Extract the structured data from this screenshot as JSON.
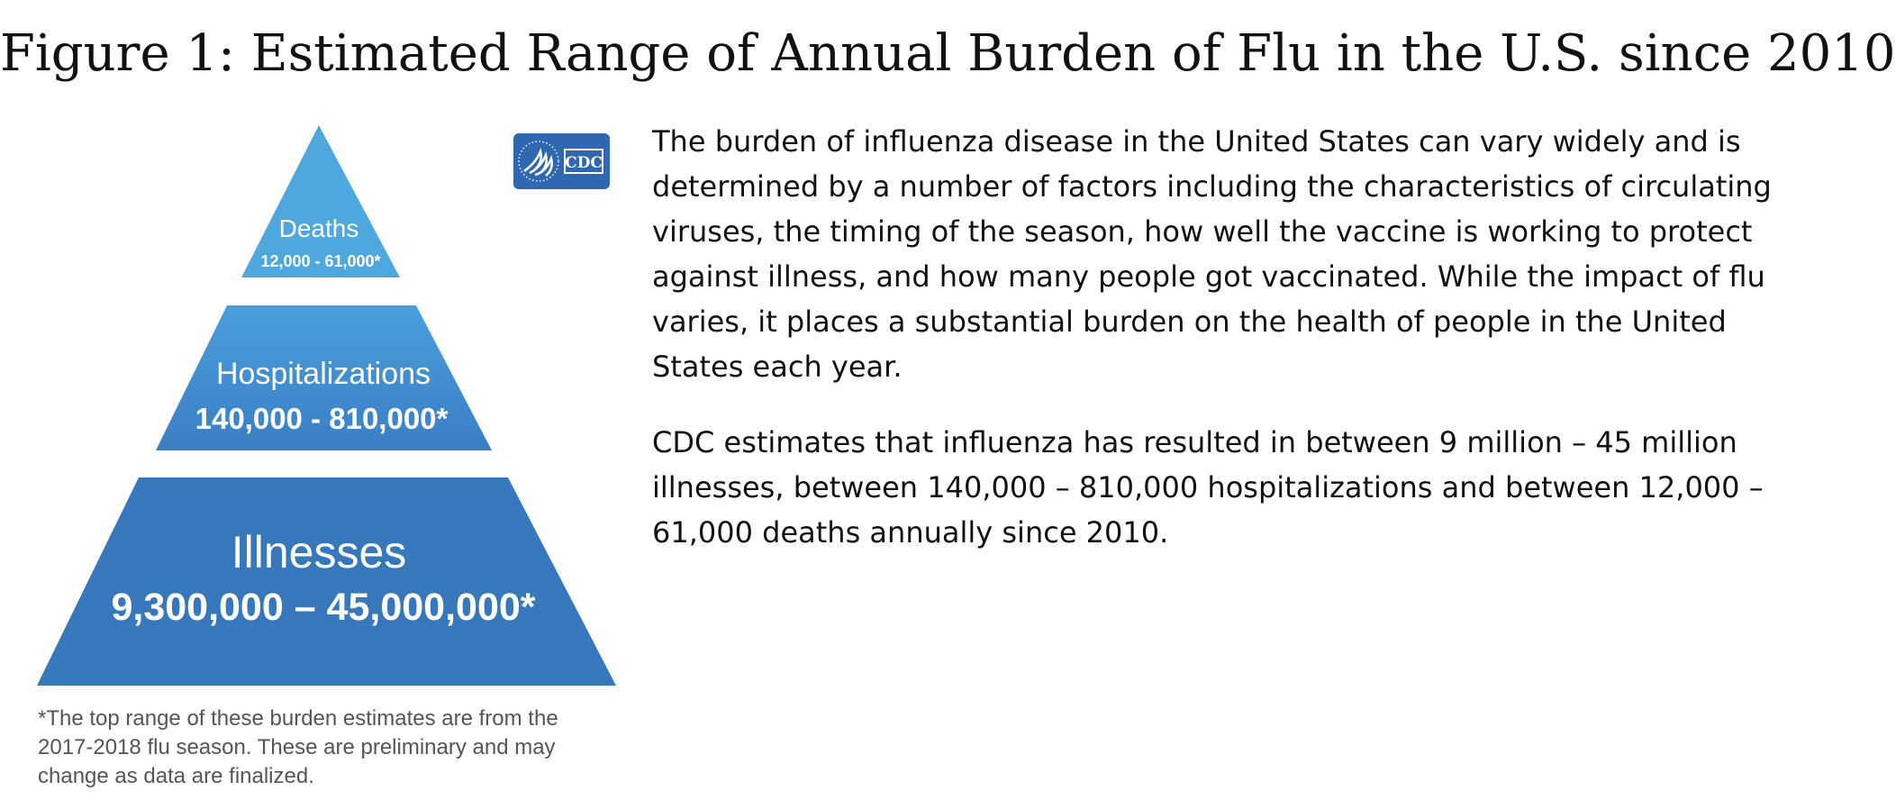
{
  "figure": {
    "title": "Figure 1: Estimated Range of Annual Burden of Flu in the U.S. since 2010"
  },
  "pyramid": {
    "tiers": [
      {
        "label": "Deaths",
        "value": "12,000 - 61,000*"
      },
      {
        "label": "Hospitalizations",
        "value": "140,000 - 810,000*"
      },
      {
        "label": "Illnesses",
        "value": "9,300,000 – 45,000,000*"
      }
    ],
    "colors": {
      "top": "#4ea7dd",
      "middle_top": "#4b9fdc",
      "middle_bottom": "#3a7ec4",
      "bottom": "#3778bd"
    }
  },
  "logo": {
    "text": "CDC",
    "color": "#2f67b1"
  },
  "footnote": "*The top range of these burden estimates are from the 2017-2018 flu season. These are preliminary and may change as data are finalized.",
  "body": {
    "paragraph1": "The burden of influenza disease in the United States can vary widely and is determined by a number of factors including the characteristics of circulating viruses, the timing of the season, how well the vaccine is working to protect against illness, and how many people got vaccinated. While the impact of flu varies, it places a substantial burden on the health of people in the United States each year.",
    "paragraph2": "CDC estimates that influenza has resulted in between 9 million – 45 million illnesses, between 140,000 – 810,000 hospitalizations and between 12,000 – 61,000 deaths annually since 2010."
  }
}
